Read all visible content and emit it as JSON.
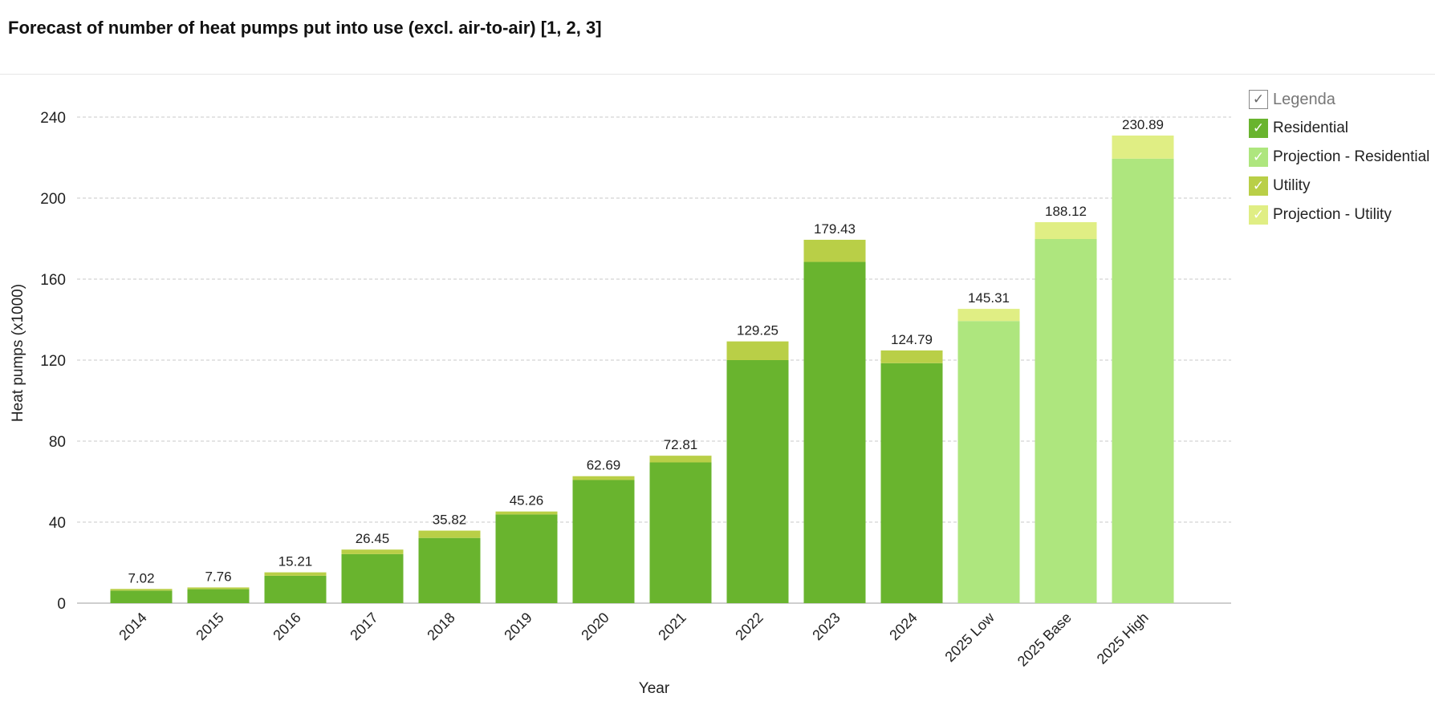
{
  "chart_data": {
    "type": "bar",
    "stacked": true,
    "title": "Forecast of number of heat pumps put into use (excl. air-to-air) [1, 2, 3]",
    "xlabel": "Year",
    "ylabel": "Heat pumps (x1000)",
    "ylim": [
      0,
      240
    ],
    "yticks": [
      0,
      40,
      80,
      120,
      160,
      200,
      240
    ],
    "grid": true,
    "legend_position": "right",
    "categories": [
      "2014",
      "2015",
      "2016",
      "2017",
      "2018",
      "2019",
      "2020",
      "2021",
      "2022",
      "2023",
      "2024",
      "2025 Low",
      "2025 Base",
      "2025 High"
    ],
    "series": [
      {
        "name": "Residential",
        "color": "#69b42e",
        "values": [
          6.2,
          6.9,
          13.5,
          24.2,
          32.2,
          43.8,
          60.8,
          69.5,
          120.0,
          168.5,
          118.5,
          null,
          null,
          null
        ]
      },
      {
        "name": "Projection - Residential",
        "color": "#aee67e",
        "values": [
          null,
          null,
          null,
          null,
          null,
          null,
          null,
          null,
          null,
          null,
          null,
          139.3,
          179.8,
          219.5
        ]
      },
      {
        "name": "Utility",
        "color": "#b9cf47",
        "values": [
          0.82,
          0.86,
          1.71,
          2.25,
          3.62,
          1.46,
          1.89,
          3.31,
          9.25,
          10.93,
          6.29,
          null,
          null,
          null
        ]
      },
      {
        "name": "Projection - Utility",
        "color": "#e0ee84",
        "values": [
          null,
          null,
          null,
          null,
          null,
          null,
          null,
          null,
          null,
          null,
          null,
          6.01,
          8.32,
          11.39
        ]
      }
    ],
    "totals": [
      7.02,
      7.76,
      15.21,
      26.45,
      35.82,
      45.26,
      62.69,
      72.81,
      129.25,
      179.43,
      124.79,
      145.31,
      188.12,
      230.89
    ],
    "total_labels": [
      "7.02",
      "7.76",
      "15.21",
      "26.45",
      "35.82",
      "45.26",
      "62.69",
      "72.81",
      "129.25",
      "179.43",
      "124.79",
      "145.31",
      "188.12",
      "230.89"
    ]
  },
  "legend": {
    "header": "Legenda",
    "check": "✓",
    "items": [
      {
        "label": "Residential",
        "color": "#69b42e"
      },
      {
        "label": "Projection - Residential",
        "color": "#aee67e"
      },
      {
        "label": "Utility",
        "color": "#b9cf47"
      },
      {
        "label": "Projection - Utility",
        "color": "#e0ee84"
      }
    ]
  }
}
